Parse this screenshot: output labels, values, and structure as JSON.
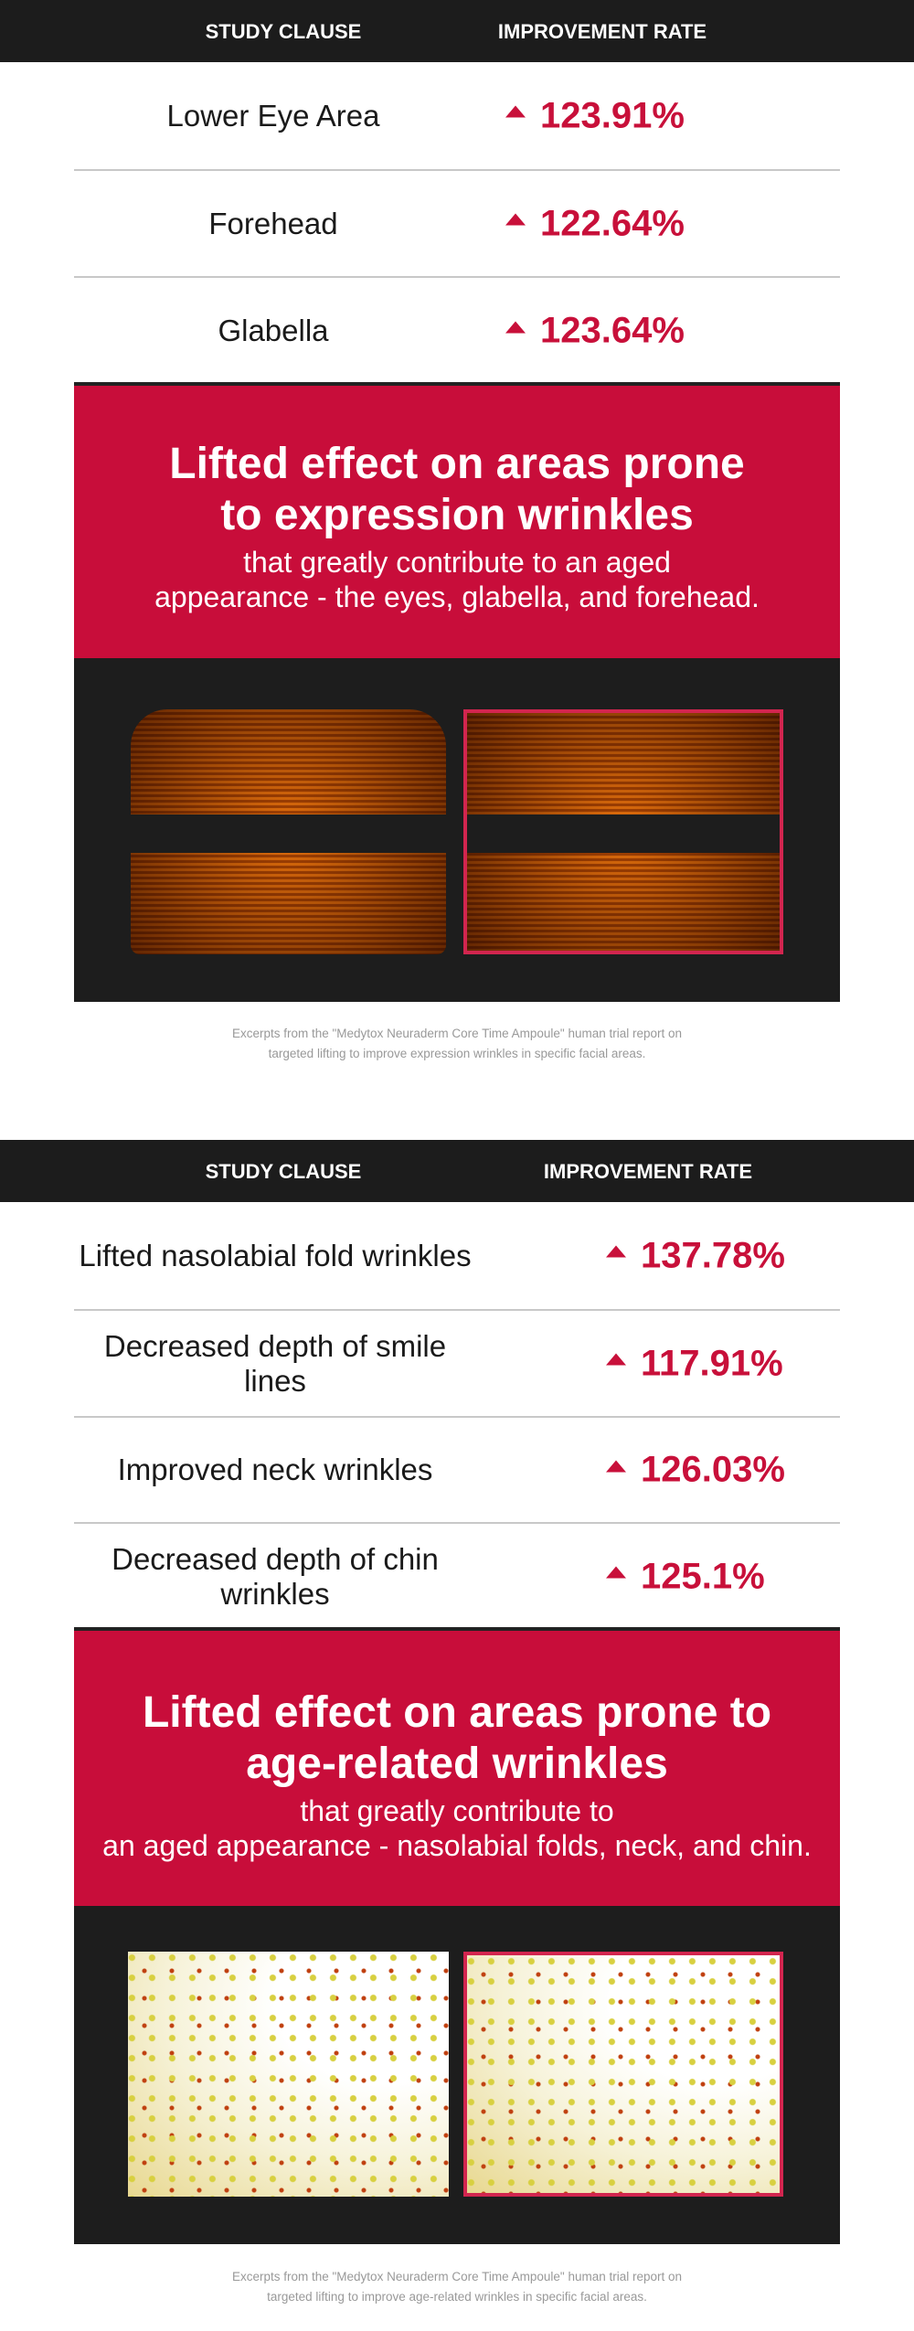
{
  "sections": [
    {
      "header": {
        "col1": "STUDY CLAUSE",
        "col2": "IMPROVEMENT RATE"
      },
      "rows": [
        {
          "label": "Lower Eye Area",
          "value": "123.91%"
        },
        {
          "label": "Forehead",
          "value": "122.64%"
        },
        {
          "label": "Glabella",
          "value": "123.64%"
        }
      ],
      "banner": {
        "title_line1": "Lifted effect on areas prone",
        "title_line2": "to expression wrinkles",
        "sub_line1": "that greatly contribute to an aged",
        "sub_line2": "appearance - the eyes, glabella, and forehead."
      },
      "caption": {
        "line1": "Excerpts from the \"Medytox Neuraderm Core Time Ampoule\" human trial report on",
        "line2": "targeted lifting to improve expression wrinkles in specific facial areas."
      }
    },
    {
      "header": {
        "col1": "STUDY CLAUSE",
        "col2": "IMPROVEMENT RATE"
      },
      "rows": [
        {
          "label": "Lifted nasolabial fold wrinkles",
          "value": "137.78%"
        },
        {
          "label": "Decreased depth of smile lines",
          "value": "117.91%"
        },
        {
          "label": "Improved neck wrinkles",
          "value": "126.03%"
        },
        {
          "label": "Decreased depth of chin wrinkles",
          "value": "125.1%"
        }
      ],
      "banner": {
        "title_line1": "Lifted effect on areas prone to",
        "title_line2": "age-related wrinkles",
        "sub_line1": "that greatly contribute to",
        "sub_line2": "an aged appearance - nasolabial folds, neck, and chin."
      },
      "caption": {
        "line1": "Excerpts from the \"Medytox Neuraderm Core Time Ampoule\" human trial report on",
        "line2": "targeted lifting to improve age-related wrinkles in specific facial areas."
      }
    }
  ],
  "icons": {
    "increase": "triangle-up-icon"
  },
  "colors": {
    "accent": "#c80d3a",
    "header_bg": "#1c1c1c"
  }
}
